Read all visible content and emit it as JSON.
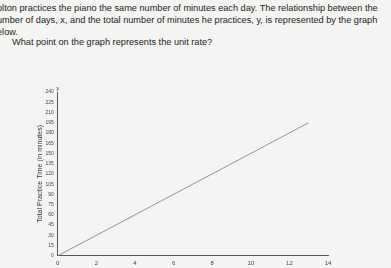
{
  "page": {
    "paragraph": [
      "olton practices the piano the same number of minutes each day. The relationship between the",
      "umber of days, x, and the total number of minutes he practices, y, is represented by the graph",
      "elow."
    ],
    "question": "What point on the graph represents the unit rate?"
  },
  "chart_data": {
    "type": "line",
    "x": [
      0,
      13
    ],
    "values": [
      0,
      195
    ],
    "color": "#8a97aa",
    "y_label": "Total Practice Time (in minutes)",
    "annotations": [
      "y"
    ],
    "xlim": [
      0,
      14
    ],
    "xticks": [
      0,
      2,
      4,
      6,
      8,
      10,
      12,
      14
    ],
    "ylim": [
      0,
      240
    ],
    "yticks": [
      0,
      15,
      30,
      45,
      60,
      75,
      90,
      105,
      120,
      135,
      150,
      165,
      180,
      195,
      210,
      225,
      240
    ],
    "grid": false
  }
}
